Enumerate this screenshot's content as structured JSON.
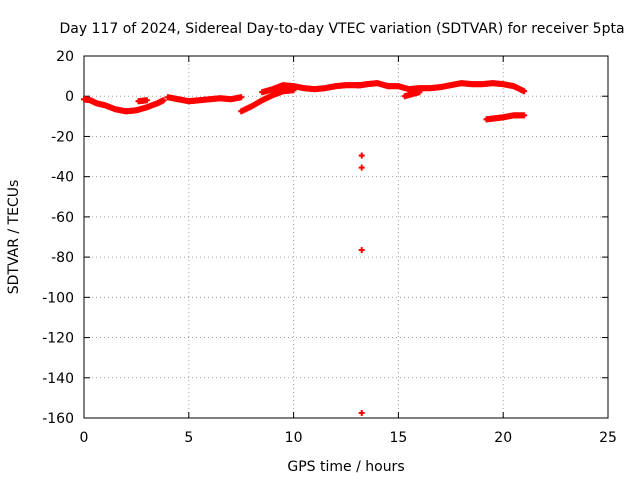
{
  "chart_data": {
    "type": "scatter",
    "title": "Day 117 of 2024, Sidereal Day-to-day VTEC variation (SDTVAR) for receiver 5pta",
    "xlabel": "GPS time / hours",
    "ylabel": "SDTVAR / TECUs",
    "xlim": [
      0,
      25
    ],
    "ylim": [
      -160,
      20
    ],
    "xticks": [
      0,
      5,
      10,
      15,
      20,
      25
    ],
    "yticks": [
      20,
      0,
      -20,
      -40,
      -60,
      -80,
      -100,
      -120,
      -140,
      -160
    ],
    "grid": true,
    "marker": "plus",
    "series": [
      {
        "name": "SDTVAR",
        "color": "#ff0000",
        "points": [
          [
            0.0,
            -1.5
          ],
          [
            0.3,
            -2.0
          ],
          [
            0.6,
            -3.5
          ],
          [
            1.0,
            -4.5
          ],
          [
            1.5,
            -6.5
          ],
          [
            2.0,
            -7.5
          ],
          [
            2.5,
            -7.0
          ],
          [
            3.0,
            -5.5
          ],
          [
            3.5,
            -3.5
          ],
          [
            3.8,
            -2.0
          ],
          [
            2.6,
            -2.5
          ],
          [
            3.0,
            -2.0
          ],
          [
            4.0,
            -0.5
          ],
          [
            4.5,
            -1.5
          ],
          [
            5.0,
            -2.5
          ],
          [
            5.5,
            -2.0
          ],
          [
            6.0,
            -1.5
          ],
          [
            6.5,
            -1.0
          ],
          [
            7.0,
            -1.5
          ],
          [
            7.5,
            -0.5
          ],
          [
            7.5,
            -7.5
          ],
          [
            8.0,
            -5.0
          ],
          [
            8.5,
            -2.0
          ],
          [
            9.0,
            0.5
          ],
          [
            9.5,
            2.5
          ],
          [
            10.0,
            3.0
          ],
          [
            8.5,
            2.0
          ],
          [
            9.0,
            3.5
          ],
          [
            9.5,
            5.5
          ],
          [
            10.0,
            5.0
          ],
          [
            10.5,
            4.0
          ],
          [
            11.0,
            3.5
          ],
          [
            11.5,
            4.0
          ],
          [
            12.0,
            5.0
          ],
          [
            12.5,
            5.5
          ],
          [
            13.0,
            5.5
          ],
          [
            13.2,
            5.5
          ],
          [
            13.5,
            6.0
          ],
          [
            14.0,
            6.5
          ],
          [
            14.5,
            5.0
          ],
          [
            15.0,
            5.0
          ],
          [
            15.5,
            3.5
          ],
          [
            16.0,
            4.0
          ],
          [
            16.5,
            4.0
          ],
          [
            17.0,
            4.5
          ],
          [
            17.5,
            5.5
          ],
          [
            18.0,
            6.5
          ],
          [
            18.5,
            6.0
          ],
          [
            19.0,
            6.0
          ],
          [
            19.5,
            6.5
          ],
          [
            20.0,
            6.0
          ],
          [
            20.5,
            5.0
          ],
          [
            21.0,
            2.5
          ],
          [
            15.3,
            0.0
          ],
          [
            16.0,
            2.0
          ],
          [
            19.2,
            -11.5
          ],
          [
            19.6,
            -11.0
          ],
          [
            20.0,
            -10.5
          ],
          [
            20.5,
            -9.5
          ],
          [
            21.0,
            -9.5
          ],
          [
            13.25,
            -29.5
          ],
          [
            13.25,
            -35.5
          ],
          [
            13.25,
            -76.5
          ],
          [
            13.25,
            -157.5
          ]
        ]
      }
    ]
  }
}
